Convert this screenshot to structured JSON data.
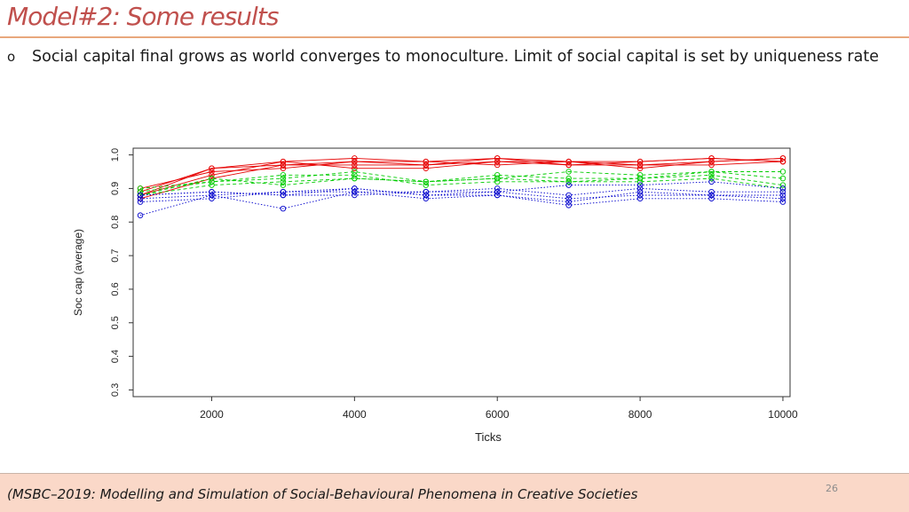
{
  "slide": {
    "title": "Model#2: Some results",
    "bullet_marker": "o",
    "bullet_text": "Social capital final grows as world converges to monoculture. Limit of social capital is set by uniqueness rate"
  },
  "footer": {
    "text": "(MSBC–2019: Modelling and Simulation of Social-Behavioural Phenomena in Creative Societies",
    "page_number": "26"
  },
  "colors": {
    "accent": "#c0504d",
    "rule": "#e8a87c",
    "footer_bg": "#fad8c8",
    "red": "#e60000",
    "green": "#00cc00",
    "blue": "#0000cc"
  },
  "chart_data": {
    "type": "line",
    "title": "",
    "xlabel": "Ticks",
    "ylabel": "Soc cap (average)",
    "xlim": [
      900,
      10100
    ],
    "ylim": [
      0.28,
      1.02
    ],
    "x_ticks": [
      2000,
      4000,
      6000,
      8000,
      10000
    ],
    "y_ticks": [
      0.3,
      0.4,
      0.5,
      0.6,
      0.7,
      0.8,
      0.9,
      1.0
    ],
    "x": [
      1000,
      2000,
      3000,
      4000,
      5000,
      6000,
      7000,
      8000,
      9000,
      10000
    ],
    "series": [
      {
        "name": "red-1",
        "color": "#e60000",
        "style": "solid",
        "values": [
          0.88,
          0.94,
          0.98,
          0.99,
          0.98,
          0.99,
          0.98,
          0.97,
          0.98,
          0.99
        ]
      },
      {
        "name": "red-2",
        "color": "#e60000",
        "style": "solid",
        "values": [
          0.89,
          0.96,
          0.97,
          0.98,
          0.97,
          0.98,
          0.98,
          0.98,
          0.99,
          0.98
        ]
      },
      {
        "name": "red-3",
        "color": "#e60000",
        "style": "solid",
        "values": [
          0.87,
          0.93,
          0.97,
          0.97,
          0.97,
          0.99,
          0.97,
          0.97,
          0.97,
          0.98
        ]
      },
      {
        "name": "red-4",
        "color": "#e60000",
        "style": "solid",
        "values": [
          0.9,
          0.95,
          0.96,
          0.98,
          0.98,
          0.97,
          0.98,
          0.96,
          0.98,
          0.99
        ]
      },
      {
        "name": "red-5",
        "color": "#e60000",
        "style": "solid",
        "values": [
          0.88,
          0.96,
          0.98,
          0.96,
          0.96,
          0.98,
          0.97,
          0.98,
          0.99,
          0.98
        ]
      },
      {
        "name": "green-1",
        "color": "#00cc00",
        "style": "dashed",
        "values": [
          0.89,
          0.92,
          0.93,
          0.95,
          0.92,
          0.94,
          0.93,
          0.93,
          0.95,
          0.95
        ]
      },
      {
        "name": "green-2",
        "color": "#00cc00",
        "style": "dashed",
        "values": [
          0.88,
          0.91,
          0.92,
          0.93,
          0.92,
          0.93,
          0.95,
          0.94,
          0.95,
          0.93
        ]
      },
      {
        "name": "green-3",
        "color": "#00cc00",
        "style": "dashed",
        "values": [
          0.9,
          0.92,
          0.94,
          0.94,
          0.91,
          0.92,
          0.92,
          0.93,
          0.94,
          0.91
        ]
      },
      {
        "name": "green-4",
        "color": "#00cc00",
        "style": "dashed",
        "values": [
          0.88,
          0.93,
          0.91,
          0.93,
          0.92,
          0.93,
          0.92,
          0.92,
          0.93,
          0.9
        ]
      },
      {
        "name": "blue-1",
        "color": "#0000cc",
        "style": "dotted",
        "values": [
          0.82,
          0.88,
          0.84,
          0.89,
          0.87,
          0.88,
          0.85,
          0.87,
          0.87,
          0.86
        ]
      },
      {
        "name": "blue-2",
        "color": "#0000cc",
        "style": "dotted",
        "values": [
          0.88,
          0.89,
          0.88,
          0.9,
          0.88,
          0.89,
          0.87,
          0.88,
          0.88,
          0.88
        ]
      },
      {
        "name": "blue-3",
        "color": "#0000cc",
        "style": "dotted",
        "values": [
          0.87,
          0.88,
          0.89,
          0.89,
          0.89,
          0.9,
          0.88,
          0.9,
          0.89,
          0.89
        ]
      },
      {
        "name": "blue-4",
        "color": "#0000cc",
        "style": "dotted",
        "values": [
          0.88,
          0.89,
          0.88,
          0.88,
          0.89,
          0.89,
          0.91,
          0.91,
          0.92,
          0.9
        ]
      },
      {
        "name": "blue-5",
        "color": "#0000cc",
        "style": "dotted",
        "values": [
          0.86,
          0.87,
          0.89,
          0.9,
          0.88,
          0.88,
          0.86,
          0.89,
          0.88,
          0.87
        ]
      }
    ]
  }
}
